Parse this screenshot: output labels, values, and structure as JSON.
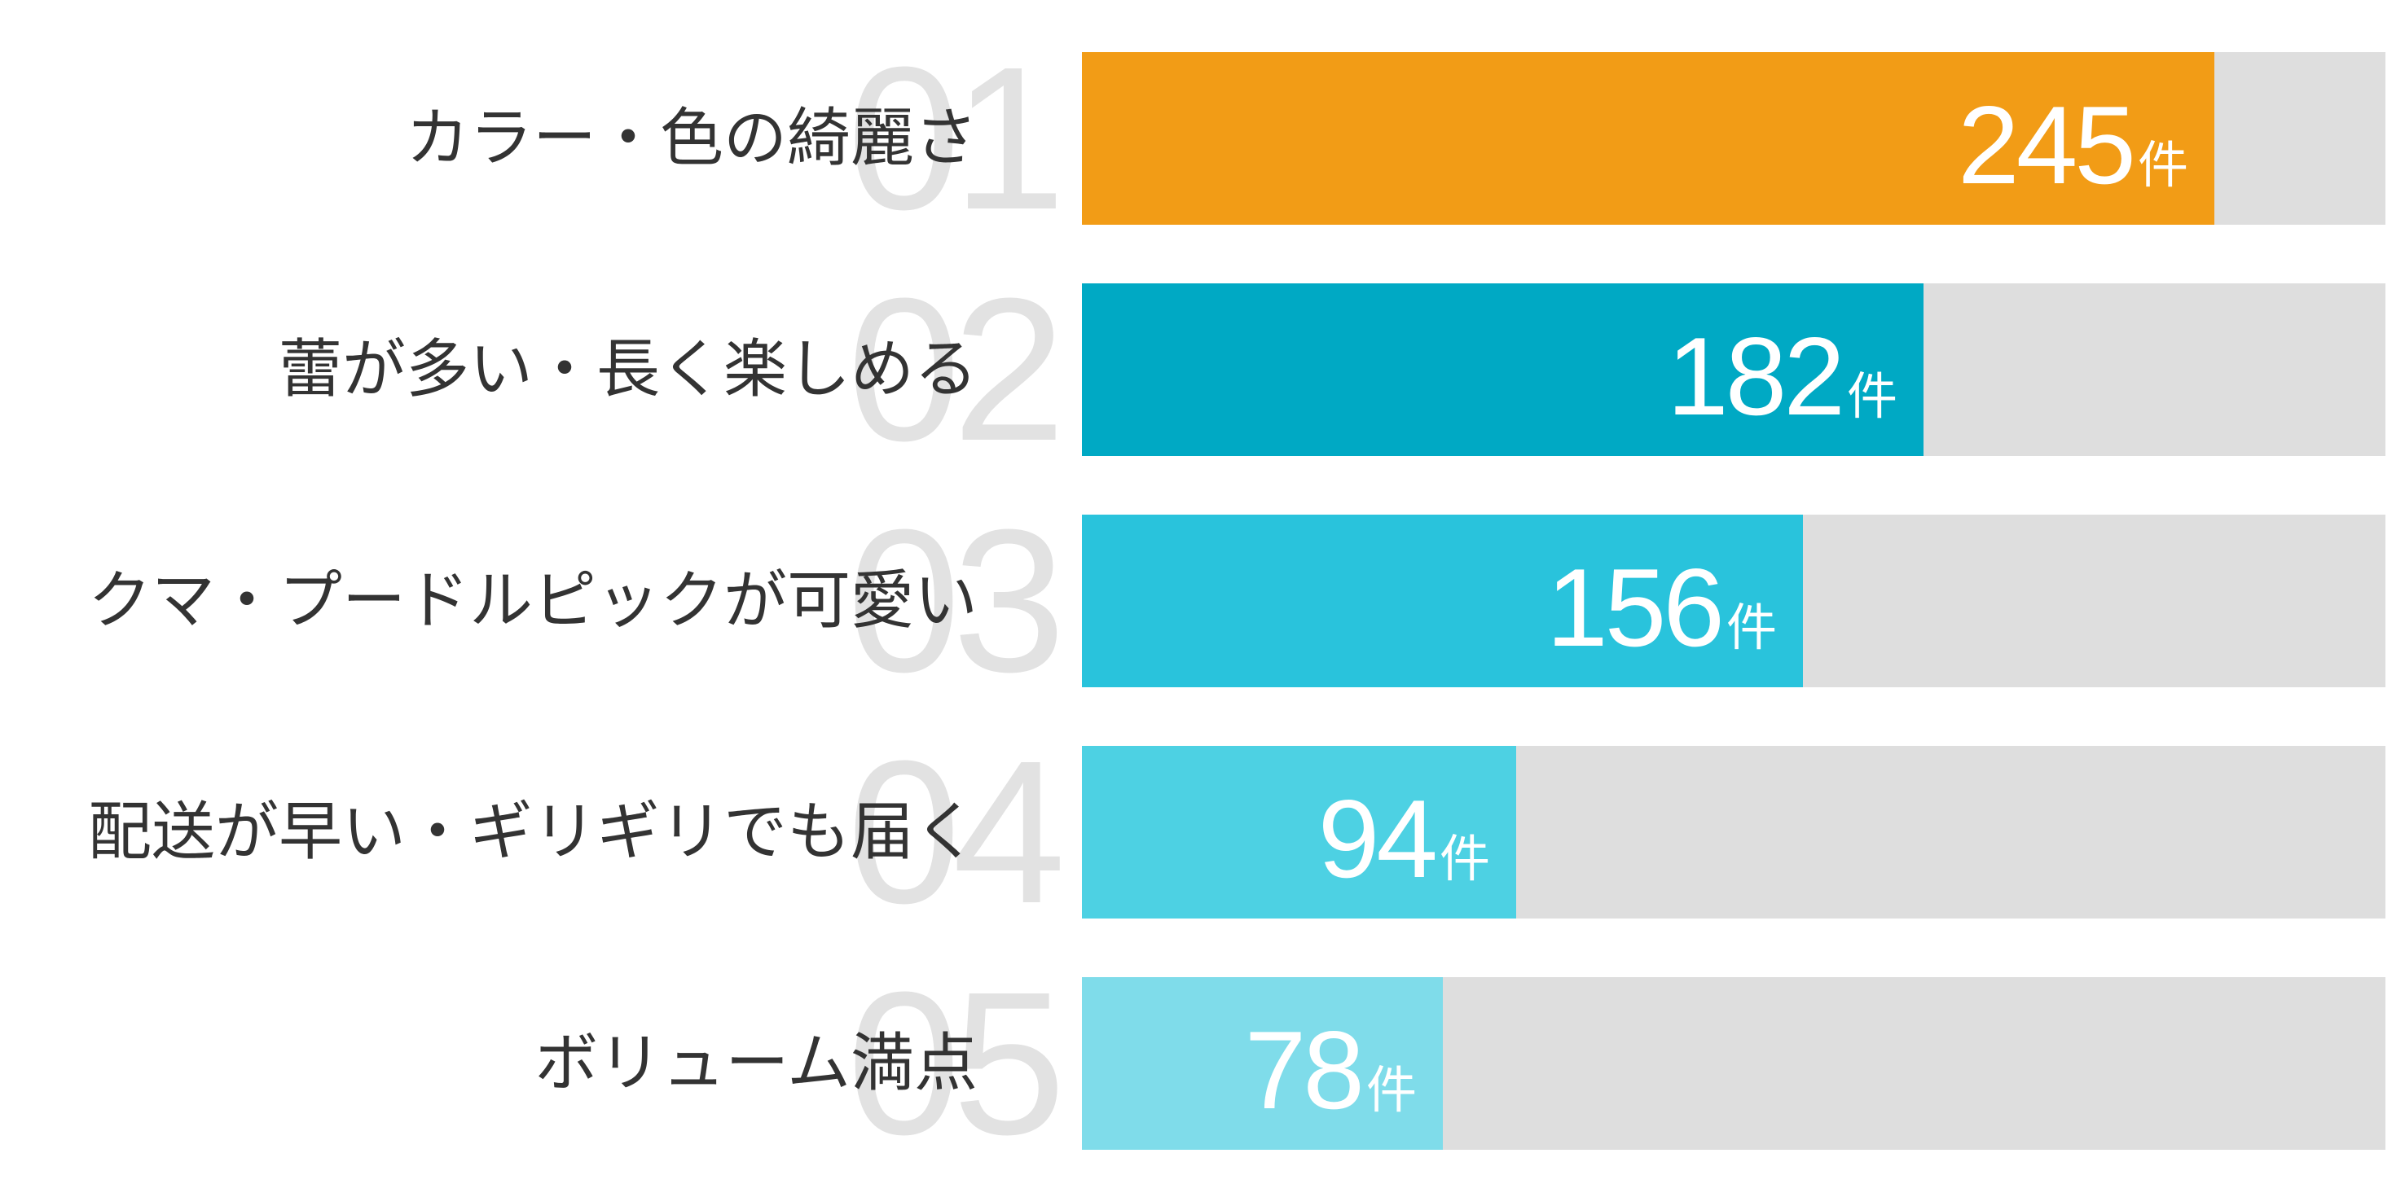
{
  "chart_data": {
    "type": "bar",
    "orientation": "horizontal",
    "categories": [
      "カラー・色の綺麗さ",
      "蕾が多い・長く楽しめる",
      "クマ・プードルピックが可愛い",
      "配送が早い・ギリギリでも届く",
      "ボリューム満点"
    ],
    "ranks": [
      "01",
      "02",
      "03",
      "04",
      "05"
    ],
    "values": [
      245,
      182,
      156,
      94,
      78
    ],
    "unit": "件",
    "xlim": [
      0,
      282
    ],
    "colors": [
      "#f29c16",
      "#00a9c4",
      "#29c3dc",
      "#4dd1e3",
      "#7fdcea"
    ],
    "track_color": "#dedede"
  }
}
